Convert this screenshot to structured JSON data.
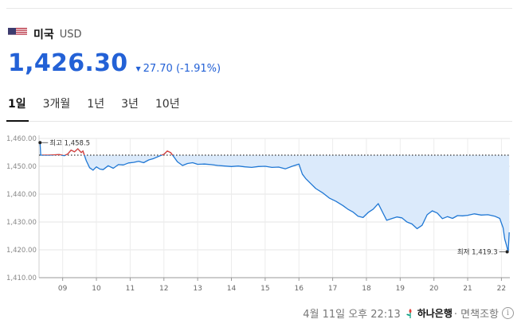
{
  "currency": {
    "country": "미국",
    "code": "USD",
    "price": "1,426.30",
    "change": "27.70 (-1.91%)",
    "flag_colors": {
      "red": "#b22234",
      "white": "#ffffff",
      "blue": "#3c3b6e"
    }
  },
  "tabs": [
    {
      "label": "1일",
      "active": true
    },
    {
      "label": "3개월",
      "active": false
    },
    {
      "label": "1년",
      "active": false
    },
    {
      "label": "3년",
      "active": false
    },
    {
      "label": "10년",
      "active": false
    }
  ],
  "footer": {
    "timestamp": "4월 11일 오후 22:13",
    "bank": "하나은행",
    "suffix": "· 면책조항",
    "info_icon": "info-icon"
  },
  "colors": {
    "accent": "#2361d6",
    "line": "#1f77d4",
    "fill": "#dbeafb",
    "high_segment": "#e0433a"
  },
  "chart_data": {
    "type": "area",
    "title": "",
    "xlabel": "",
    "ylabel": "",
    "ylim": [
      1410,
      1460
    ],
    "yticks": [
      "1,410.00",
      "1,420.00",
      "1,430.00",
      "1,440.00",
      "1,450.00",
      "1,460.00"
    ],
    "ytick_values": [
      1410,
      1420,
      1430,
      1440,
      1450,
      1460
    ],
    "xticks": [
      "09",
      "10",
      "11",
      "12",
      "13",
      "14",
      "15",
      "16",
      "17",
      "18",
      "19",
      "20",
      "21",
      "22"
    ],
    "xtick_values": [
      9,
      10,
      11,
      12,
      13,
      14,
      15,
      16,
      17,
      18,
      19,
      20,
      21,
      22
    ],
    "xlim": [
      8.3,
      22.25
    ],
    "baseline": 1454.0,
    "grid": true,
    "high": {
      "label": "최고 1,458.5",
      "x": 8.33,
      "y": 1458.5
    },
    "low": {
      "label": "최저 1,419.3",
      "x": 22.17,
      "y": 1419.3
    },
    "series": [
      {
        "x": [
          8.33,
          8.35,
          8.6,
          8.9,
          9.05,
          9.15,
          9.25,
          9.35,
          9.45,
          9.55,
          9.6,
          9.7,
          9.8,
          9.9,
          10.0,
          10.1,
          10.2,
          10.35,
          10.5,
          10.65,
          10.8,
          10.95,
          11.1,
          11.25,
          11.4,
          11.55,
          11.7,
          11.85,
          12.0,
          12.1,
          12.2,
          12.3,
          12.4,
          12.55,
          12.7,
          12.85,
          13.0,
          13.2,
          13.4,
          13.6,
          13.8,
          14.0,
          14.2,
          14.4,
          14.6,
          14.8,
          15.0,
          15.2,
          15.4,
          15.6,
          15.8,
          16.0,
          16.1,
          16.2,
          16.35,
          16.5,
          16.7,
          16.9,
          17.1,
          17.3,
          17.45,
          17.6,
          17.75,
          17.9,
          18.05,
          18.2,
          18.35,
          18.5,
          18.6,
          18.75,
          18.9,
          19.05,
          19.2,
          19.35,
          19.5,
          19.65,
          19.8,
          19.95,
          20.1,
          20.25,
          20.4,
          20.55,
          20.7,
          20.85,
          21.0,
          21.2,
          21.4,
          21.6,
          21.8,
          21.95,
          22.05,
          22.1,
          22.15,
          22.2,
          22.23
        ],
        "values": [
          1458.5,
          1454.0,
          1454.0,
          1454.2,
          1453.8,
          1454.4,
          1455.8,
          1455.2,
          1456.3,
          1454.9,
          1455.5,
          1452.0,
          1449.5,
          1448.6,
          1449.8,
          1449.0,
          1448.8,
          1450.2,
          1449.3,
          1450.6,
          1450.5,
          1451.2,
          1451.4,
          1451.8,
          1451.3,
          1452.3,
          1452.8,
          1453.6,
          1454.3,
          1455.5,
          1454.9,
          1453.3,
          1451.6,
          1450.3,
          1451.0,
          1451.3,
          1450.7,
          1450.8,
          1450.6,
          1450.3,
          1450.1,
          1449.9,
          1450.1,
          1449.8,
          1449.6,
          1449.9,
          1450.0,
          1449.6,
          1449.7,
          1449.1,
          1450.0,
          1450.8,
          1447.2,
          1445.6,
          1443.8,
          1442.0,
          1440.5,
          1438.6,
          1437.4,
          1435.9,
          1434.6,
          1433.6,
          1432.1,
          1431.6,
          1433.4,
          1434.6,
          1436.6,
          1433.0,
          1430.6,
          1431.2,
          1431.8,
          1431.5,
          1430.0,
          1429.3,
          1427.6,
          1428.8,
          1432.6,
          1434.0,
          1433.2,
          1431.2,
          1431.9,
          1431.3,
          1432.3,
          1432.2,
          1432.4,
          1432.9,
          1432.5,
          1432.6,
          1432.1,
          1431.3,
          1427.9,
          1423.8,
          1421.6,
          1419.3,
          1426.3
        ]
      }
    ]
  }
}
